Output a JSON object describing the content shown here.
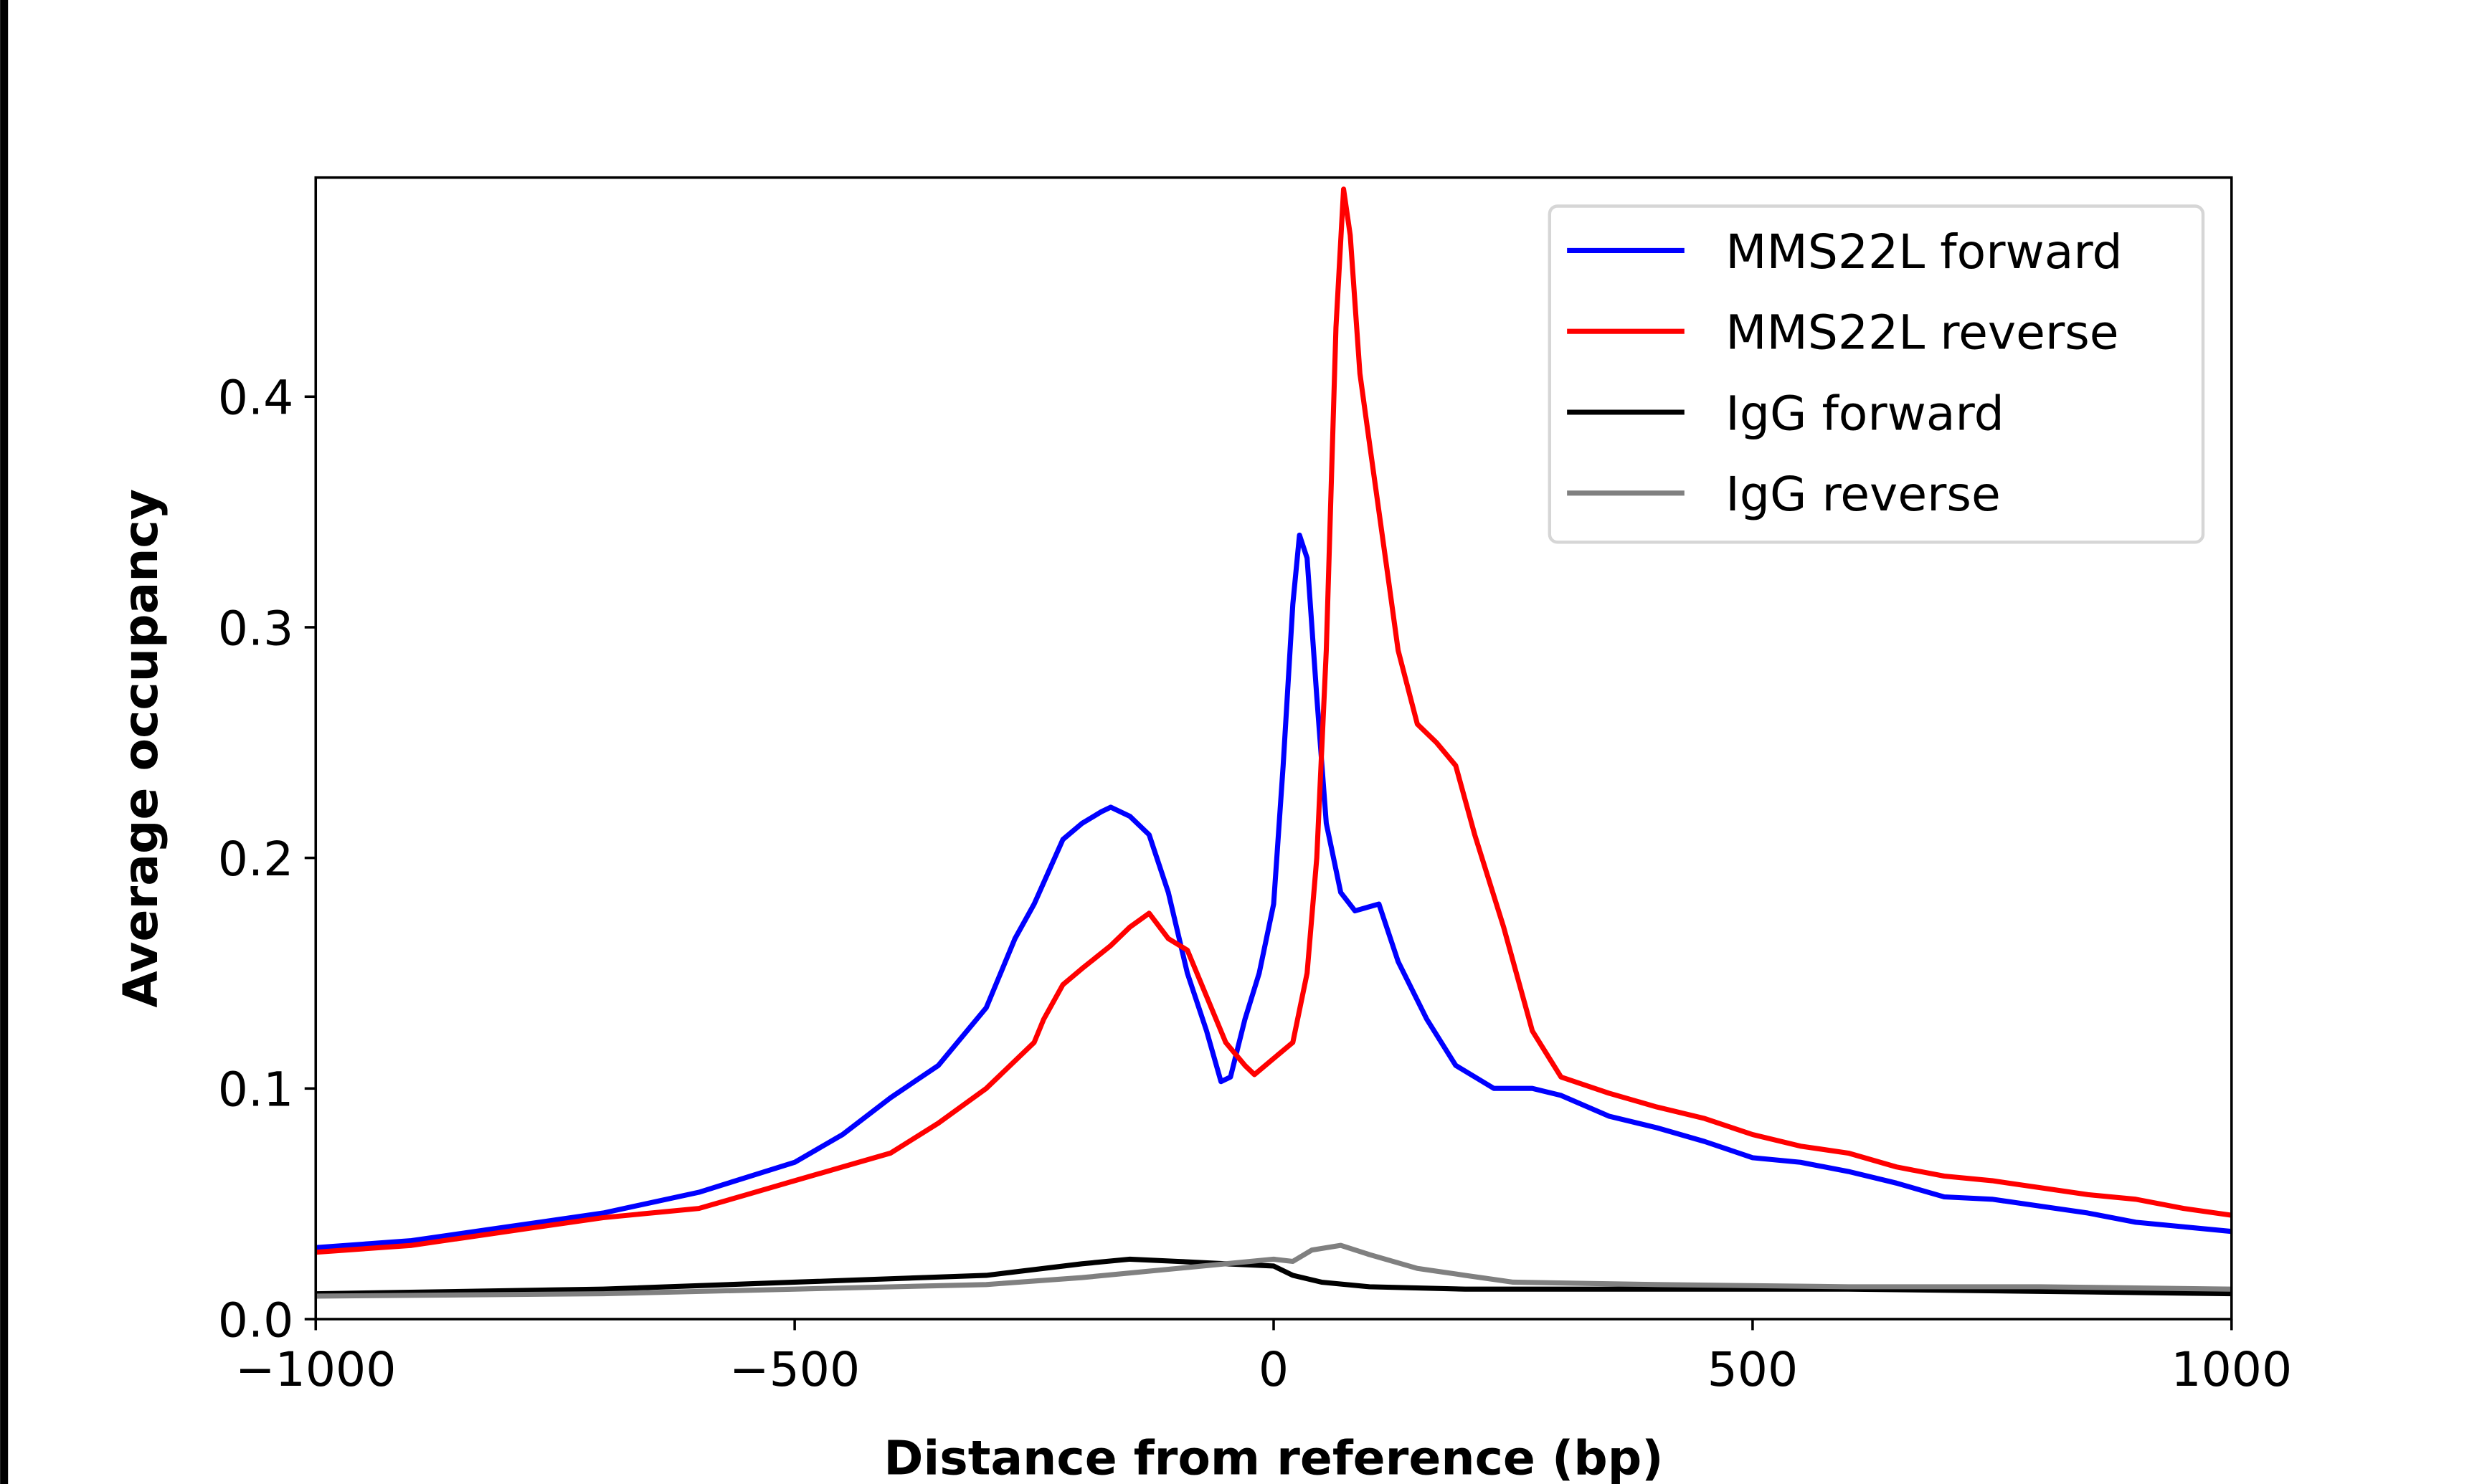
{
  "chart_data": {
    "type": "line",
    "title": "",
    "xlabel": "Distance from reference (bp)",
    "ylabel": "Average occupancy",
    "xlim": [
      -1000,
      1000
    ],
    "ylim": [
      0,
      0.495
    ],
    "xticks": [
      -1000,
      -500,
      0,
      500,
      1000
    ],
    "xtick_labels": [
      "−1000",
      "−500",
      "0",
      "500",
      "1000"
    ],
    "yticks": [
      0,
      0.1,
      0.2,
      0.3,
      0.4
    ],
    "ytick_labels": [
      "0.0",
      "0.1",
      "0.2",
      "0.3",
      "0.4"
    ],
    "grid": false,
    "legend_position": "top-right",
    "series": [
      {
        "name": "MMS22L forward",
        "color": "#0000ff",
        "x": [
          -1000,
          -900,
          -800,
          -700,
          -600,
          -500,
          -450,
          -400,
          -350,
          -300,
          -270,
          -250,
          -220,
          -200,
          -180,
          -170,
          -150,
          -130,
          -110,
          -90,
          -70,
          -55,
          -45,
          -30,
          -15,
          0,
          10,
          20,
          27,
          35,
          45,
          55,
          70,
          85,
          110,
          130,
          160,
          190,
          230,
          270,
          300,
          350,
          400,
          450,
          500,
          550,
          600,
          650,
          700,
          750,
          800,
          850,
          900,
          950,
          1000
        ],
        "y": [
          0.031,
          0.034,
          0.04,
          0.046,
          0.055,
          0.068,
          0.08,
          0.096,
          0.11,
          0.135,
          0.165,
          0.18,
          0.208,
          0.215,
          0.22,
          0.222,
          0.218,
          0.21,
          0.185,
          0.15,
          0.125,
          0.103,
          0.105,
          0.13,
          0.15,
          0.18,
          0.24,
          0.31,
          0.34,
          0.33,
          0.27,
          0.215,
          0.185,
          0.177,
          0.18,
          0.155,
          0.13,
          0.11,
          0.1,
          0.1,
          0.097,
          0.088,
          0.083,
          0.077,
          0.07,
          0.068,
          0.064,
          0.059,
          0.053,
          0.052,
          0.049,
          0.046,
          0.042,
          0.04,
          0.038
        ]
      },
      {
        "name": "MMS22L reverse",
        "color": "#ff0000",
        "x": [
          -1000,
          -900,
          -800,
          -700,
          -600,
          -550,
          -500,
          -450,
          -400,
          -350,
          -300,
          -250,
          -240,
          -220,
          -200,
          -170,
          -150,
          -130,
          -110,
          -90,
          -70,
          -50,
          -30,
          -20,
          0,
          20,
          35,
          45,
          55,
          65,
          73,
          80,
          90,
          100,
          120,
          130,
          150,
          170,
          190,
          210,
          240,
          270,
          300,
          350,
          400,
          450,
          500,
          550,
          600,
          650,
          700,
          750,
          800,
          850,
          900,
          950,
          1000
        ],
        "y": [
          0.029,
          0.032,
          0.038,
          0.044,
          0.048,
          0.054,
          0.06,
          0.066,
          0.072,
          0.085,
          0.1,
          0.12,
          0.13,
          0.145,
          0.152,
          0.162,
          0.17,
          0.176,
          0.165,
          0.16,
          0.14,
          0.12,
          0.11,
          0.106,
          0.113,
          0.12,
          0.15,
          0.2,
          0.29,
          0.43,
          0.49,
          0.47,
          0.41,
          0.38,
          0.32,
          0.29,
          0.258,
          0.25,
          0.24,
          0.21,
          0.17,
          0.125,
          0.105,
          0.098,
          0.092,
          0.087,
          0.08,
          0.075,
          0.072,
          0.066,
          0.062,
          0.06,
          0.057,
          0.054,
          0.052,
          0.048,
          0.045
        ]
      },
      {
        "name": "IgG forward",
        "color": "#000000",
        "x": [
          -1000,
          -700,
          -500,
          -300,
          -200,
          -150,
          -100,
          -50,
          0,
          20,
          50,
          100,
          200,
          400,
          600,
          800,
          1000
        ],
        "y": [
          0.011,
          0.013,
          0.016,
          0.019,
          0.024,
          0.026,
          0.025,
          0.024,
          0.023,
          0.019,
          0.016,
          0.014,
          0.013,
          0.013,
          0.013,
          0.012,
          0.011
        ]
      },
      {
        "name": "IgG reverse",
        "color": "#808080",
        "x": [
          -1000,
          -700,
          -500,
          -300,
          -200,
          -100,
          -50,
          0,
          20,
          40,
          70,
          100,
          150,
          200,
          250,
          400,
          600,
          800,
          1000
        ],
        "y": [
          0.01,
          0.011,
          0.013,
          0.015,
          0.018,
          0.022,
          0.024,
          0.026,
          0.025,
          0.03,
          0.032,
          0.028,
          0.022,
          0.019,
          0.016,
          0.015,
          0.014,
          0.014,
          0.013
        ]
      }
    ]
  }
}
